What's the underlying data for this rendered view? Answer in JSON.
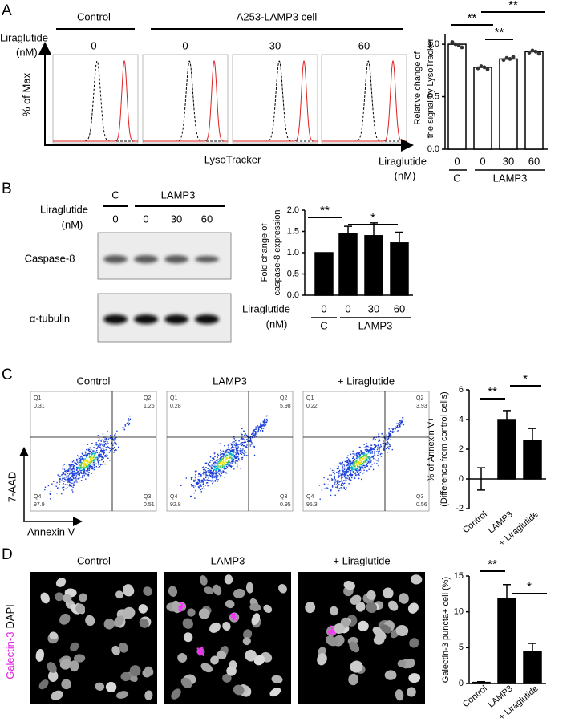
{
  "panel_labels": [
    "A",
    "B",
    "C",
    "D"
  ],
  "panel_a": {
    "headers": [
      "Control",
      "A253-LAMP3 cell"
    ],
    "treatment_label": [
      "Liraglutide",
      "(nM)"
    ],
    "doses": [
      "0",
      "0",
      "30",
      "60"
    ],
    "y_axis_label": "% of Max",
    "x_axis_label": "LysoTracker"
  },
  "panel_b": {
    "headers": [
      "C",
      "LAMP3"
    ],
    "treatment_label": [
      "Liraglutide",
      "(nM)"
    ],
    "doses": [
      "0",
      "0",
      "30",
      "60"
    ],
    "rows": [
      "Caspase-8",
      "α-tubulin"
    ]
  },
  "panel_c": {
    "titles": [
      "Control",
      "LAMP3",
      "+ Liraglutide"
    ],
    "y_axis_label": "7-AAD",
    "x_axis_label": "Annexin V",
    "quadrants": [
      [
        {
          "name": "Q1",
          "value": 0.31
        },
        {
          "name": "Q2",
          "value": 1.26
        },
        {
          "name": "Q3",
          "value": 0.51
        },
        {
          "name": "Q4",
          "value": 97.9
        }
      ],
      [
        {
          "name": "Q1",
          "value": 0.28
        },
        {
          "name": "Q2",
          "value": 5.98
        },
        {
          "name": "Q3",
          "value": 0.95
        },
        {
          "name": "Q4",
          "value": 92.8
        }
      ],
      [
        {
          "name": "Q1",
          "value": 0.22
        },
        {
          "name": "Q2",
          "value": 3.93
        },
        {
          "name": "Q3",
          "value": 0.56
        },
        {
          "name": "Q4",
          "value": 95.3
        }
      ]
    ]
  },
  "panel_d": {
    "titles": [
      "Control",
      "LAMP3",
      "+ Liraglutide"
    ],
    "stain_labels": [
      "Galectin-3",
      "DAPI"
    ]
  },
  "chart_data": [
    {
      "type": "bar",
      "y_label": [
        "Relative change of",
        "the signal by LysoTracker"
      ],
      "treatment_label": [
        "Liraglutide",
        "(nM)"
      ],
      "categories": [
        "0",
        "0",
        "30",
        "60"
      ],
      "groups": [
        "C",
        "LAMP3"
      ],
      "values": [
        1.0,
        0.78,
        0.86,
        0.93
      ],
      "points": [
        [
          1.02,
          1.0,
          0.99,
          0.97
        ],
        [
          0.77,
          0.79,
          0.78,
          0.76
        ],
        [
          0.85,
          0.87,
          0.86,
          0.88
        ],
        [
          0.92,
          0.94,
          0.93,
          0.91
        ]
      ],
      "color": "#ffffff",
      "ylim": [
        0,
        1.1
      ],
      "yticks": [
        {
          "value": 0,
          "label": "0.0"
        },
        {
          "value": 0.5,
          "label": "0.5"
        },
        {
          "value": 1,
          "label": "1.0"
        }
      ],
      "annotations": [
        "**",
        "**",
        "**"
      ]
    },
    {
      "type": "bar",
      "y_label": [
        "Fold change of",
        "caspase-8 expression"
      ],
      "treatment_label": [
        "Liraglutide",
        "(nM)"
      ],
      "categories": [
        "0",
        "0",
        "30",
        "60"
      ],
      "groups": [
        "C",
        "LAMP3"
      ],
      "values": [
        1.0,
        1.45,
        1.4,
        1.23
      ],
      "errors": [
        0,
        0.17,
        0.3,
        0.25
      ],
      "color": "#000000",
      "ylim": [
        0,
        2
      ],
      "yticks": [
        {
          "value": 0,
          "label": "0.0"
        },
        {
          "value": 0.5,
          "label": "0.5"
        },
        {
          "value": 1,
          "label": "1.0"
        },
        {
          "value": 1.5,
          "label": "1.5"
        },
        {
          "value": 2,
          "label": "2.0"
        }
      ],
      "annotations": [
        "**",
        "*"
      ]
    },
    {
      "type": "bar",
      "y_label": [
        "% of Annexin V+",
        "(Difference from control cells)"
      ],
      "categories": [
        "Control",
        "LAMP3",
        "+ Liraglutide"
      ],
      "values": [
        0,
        4.0,
        2.6
      ],
      "errors": [
        0.75,
        0.6,
        0.8
      ],
      "color": "#000000",
      "ylim": [
        -2,
        6
      ],
      "yticks": [
        -2,
        0,
        2,
        4,
        6
      ],
      "annotations": [
        "**",
        "*"
      ]
    },
    {
      "type": "bar",
      "y_label": [
        "Galectin-3 puncta+ cell (%)"
      ],
      "categories": [
        "Control",
        "LAMP3",
        "+ Liraglutide"
      ],
      "values": [
        0.15,
        11.8,
        4.4
      ],
      "errors": [
        0.1,
        2.0,
        1.2
      ],
      "color": "#000000",
      "ylim": [
        0,
        15
      ],
      "yticks": [
        0,
        5,
        10,
        15
      ],
      "annotations": [
        "**",
        "*"
      ]
    }
  ]
}
